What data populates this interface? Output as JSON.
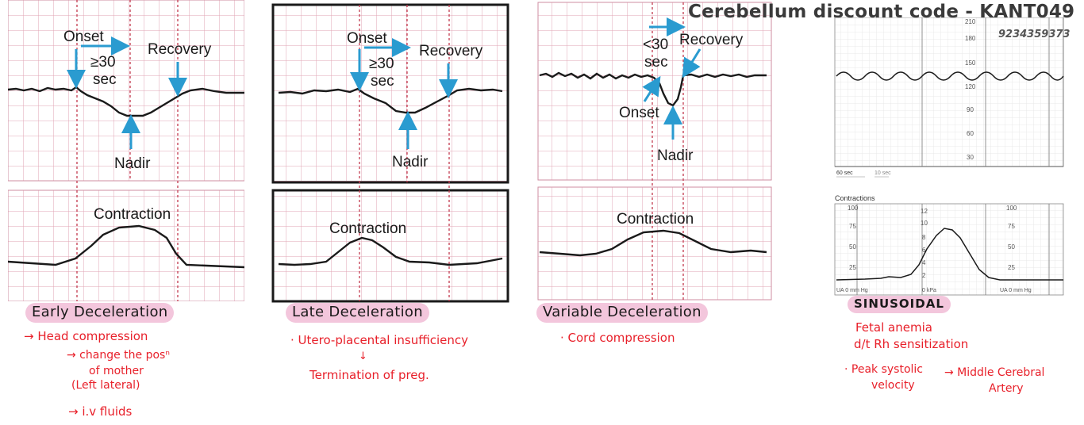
{
  "header": {
    "title": "Cerebellum discount code - KANT049",
    "phone": "9234359373"
  },
  "panels": {
    "early": {
      "onset": "Onset",
      "duration_line1": "≥30",
      "duration_line2": "sec",
      "recovery": "Recovery",
      "nadir": "Nadir",
      "contraction": "Contraction",
      "caption": "Early Deceleration",
      "notes": [
        "→ Head compression",
        "→ change the posⁿ",
        "of mother",
        "(Left lateral)",
        "→ i.v fluids"
      ]
    },
    "late": {
      "onset": "Onset",
      "duration_line1": "≥30",
      "duration_line2": "sec",
      "recovery": "Recovery",
      "nadir": "Nadir",
      "contraction": "Contraction",
      "caption": "Late Deceleration",
      "notes": [
        "· Utero-placental insufficiency",
        "↓",
        "Termination of preg."
      ]
    },
    "variable": {
      "duration_line1": "<30",
      "duration_line2": "sec",
      "recovery": "Recovery",
      "onset": "Onset",
      "nadir": "Nadir",
      "contraction": "Contraction",
      "caption": "Variable Deceleration",
      "notes": [
        "· Cord compression"
      ]
    },
    "sinusoidal": {
      "fhr_ticks": [
        "210",
        "180",
        "150",
        "120",
        "90",
        "60",
        "30"
      ],
      "time_labels": [
        "60 sec",
        "10 sec"
      ],
      "contractions_title": "Contractions",
      "uterine_left_ticks": [
        "100",
        "75",
        "50",
        "25"
      ],
      "kpa_ticks": [
        "12",
        "10",
        "8",
        "6",
        "4",
        "2"
      ],
      "uterine_right_ticks": [
        "100",
        "75",
        "50",
        "25"
      ],
      "ua_left": "UA  0  mm Hg",
      "kpa_zero": "0  kPa",
      "ua_right": "UA  0  mm Hg",
      "caption": "SINUSOIDAL",
      "notes": [
        "Fetal anemia",
        "d/t Rh sensitization",
        "· Peak systolic",
        "velocity",
        "→ Middle Cerebral",
        "Artery"
      ]
    }
  },
  "colors": {
    "grid": "#e2a4b4",
    "grid_major": "#cf8ea2",
    "trace": "#1a1a1a",
    "arrow": "#2a9bd0",
    "dashed": "#c23a4e",
    "note": "#e8202a",
    "highlight": "#f3c6dc"
  }
}
